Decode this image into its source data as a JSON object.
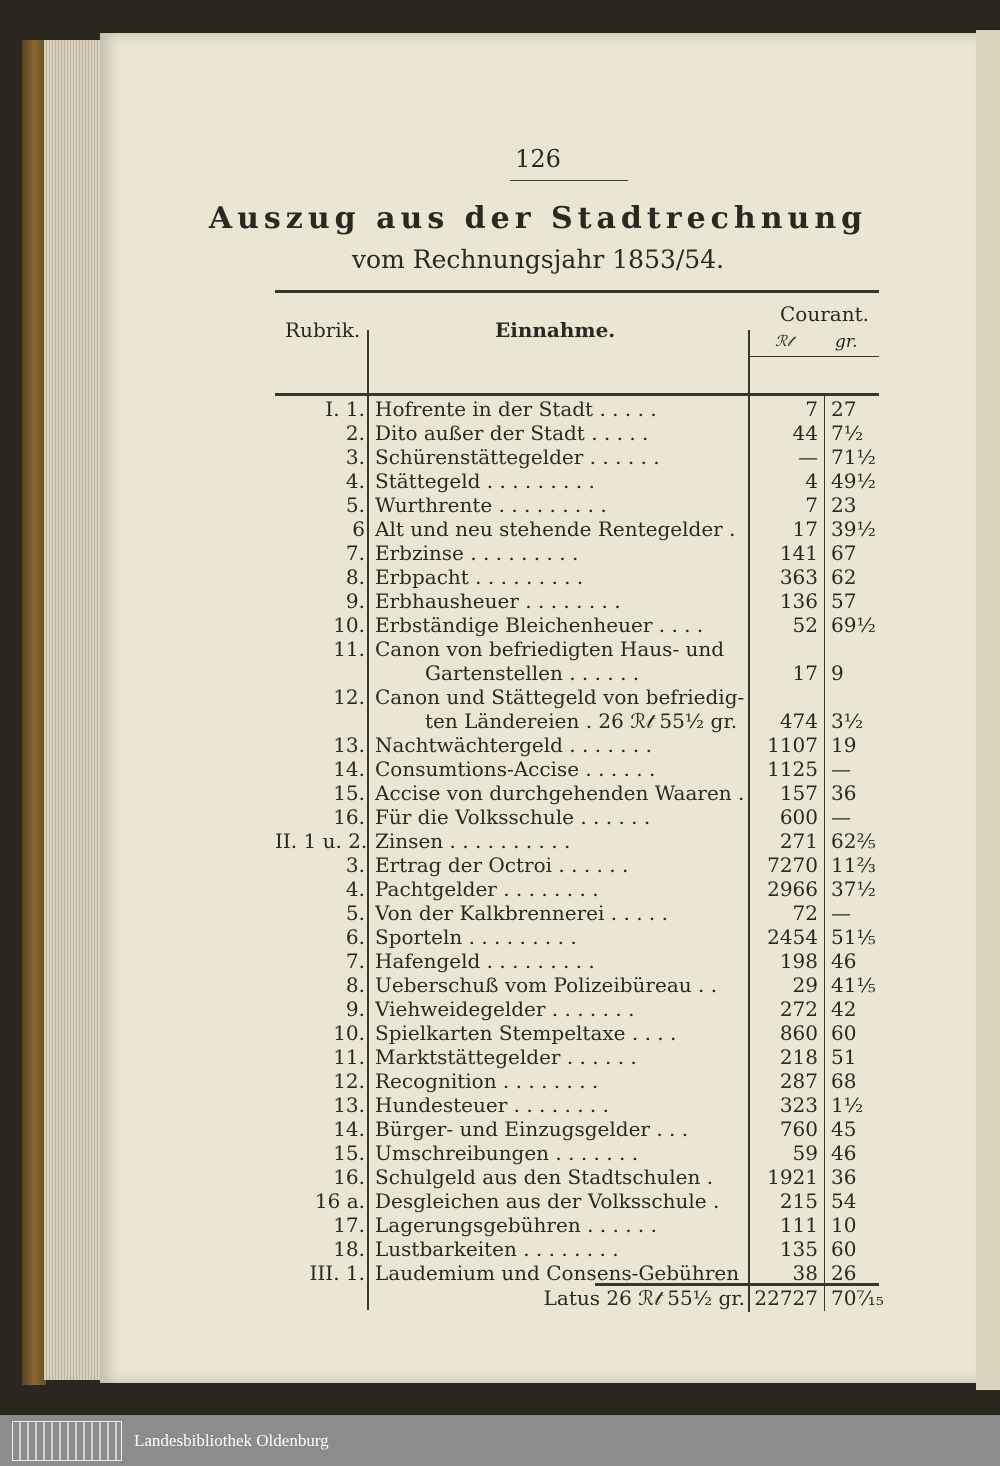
{
  "page_number": "126",
  "title": "Auszug aus der Stadtrechnung",
  "subtitle": "vom Rechnungsjahr 1853/54.",
  "table": {
    "headers": {
      "rubrik": "Rubrik.",
      "einnahme": "Einnahme.",
      "courant": "Courant.",
      "thaler": "ℛ𝓉",
      "groschen": "gr."
    },
    "rows": [
      {
        "rub": "I. 1.",
        "desc": "Hofrente in der Stadt . . . . .",
        "th": "7",
        "gr": "27"
      },
      {
        "rub": "2.",
        "desc": "Dito außer der Stadt . . . . .",
        "th": "44",
        "gr": "7½"
      },
      {
        "rub": "3.",
        "desc": "Schürenstättegelder . . . . . .",
        "th": "—",
        "gr": "71½"
      },
      {
        "rub": "4.",
        "desc": "Stättegeld . . . . . . . . .",
        "th": "4",
        "gr": "49½"
      },
      {
        "rub": "5.",
        "desc": "Wurthrente . . . . . . . . .",
        "th": "7",
        "gr": "23"
      },
      {
        "rub": "6",
        "desc": "Alt und neu stehende Rentegelder .",
        "th": "17",
        "gr": "39½"
      },
      {
        "rub": "7.",
        "desc": "Erbzinse . . . . . . . . .",
        "th": "141",
        "gr": "67"
      },
      {
        "rub": "8.",
        "desc": "Erbpacht . . . . . . . . .",
        "th": "363",
        "gr": "62"
      },
      {
        "rub": "9.",
        "desc": "Erbhausheuer . . . . . . . .",
        "th": "136",
        "gr": "57"
      },
      {
        "rub": "10.",
        "desc": "Erbständige Bleichenheuer . . . .",
        "th": "52",
        "gr": "69½"
      },
      {
        "rub": "11.",
        "desc": "Canon von befriedigten Haus- und",
        "th": "",
        "gr": ""
      },
      {
        "rub": "",
        "desc": "Gartenstellen . . . . . .",
        "th": "17",
        "gr": "9",
        "indent": true
      },
      {
        "rub": "12.",
        "desc": "Canon und Stättegeld von befriedig-",
        "th": "",
        "gr": ""
      },
      {
        "rub": "",
        "desc": "ten Ländereien . 26 ℛ𝓉 55½ gr.",
        "th": "474",
        "gr": "3½",
        "indent": true
      },
      {
        "rub": "13.",
        "desc": "Nachtwächtergeld . . . . . . .",
        "th": "1107",
        "gr": "19"
      },
      {
        "rub": "14.",
        "desc": "Consumtions-Accise . . . . . .",
        "th": "1125",
        "gr": "—"
      },
      {
        "rub": "15.",
        "desc": "Accise von durchgehenden Waaren .",
        "th": "157",
        "gr": "36"
      },
      {
        "rub": "16.",
        "desc": "Für die Volksschule . . . . . .",
        "th": "600",
        "gr": "—"
      },
      {
        "rub": "II. 1 u. 2.",
        "desc": "Zinsen . . . . . . . . . .",
        "th": "271",
        "gr": "62⅖"
      },
      {
        "rub": "3.",
        "desc": "Ertrag der Octroi . . . . . .",
        "th": "7270",
        "gr": "11⅔"
      },
      {
        "rub": "4.",
        "desc": "Pachtgelder . . . . . . . .",
        "th": "2966",
        "gr": "37½"
      },
      {
        "rub": "5.",
        "desc": "Von der Kalkbrennerei . . . . .",
        "th": "72",
        "gr": "—"
      },
      {
        "rub": "6.",
        "desc": "Sporteln . . . . . . . . .",
        "th": "2454",
        "gr": "51⅕"
      },
      {
        "rub": "7.",
        "desc": "Hafengeld . . . . . . . . .",
        "th": "198",
        "gr": "46"
      },
      {
        "rub": "8.",
        "desc": "Ueberschuß vom Polizeibüreau . .",
        "th": "29",
        "gr": "41⅕"
      },
      {
        "rub": "9.",
        "desc": "Viehweidegelder . . . . . . .",
        "th": "272",
        "gr": "42"
      },
      {
        "rub": "10.",
        "desc": "Spielkarten Stempeltaxe . . . .",
        "th": "860",
        "gr": "60"
      },
      {
        "rub": "11.",
        "desc": "Marktstättegelder . . . . . .",
        "th": "218",
        "gr": "51"
      },
      {
        "rub": "12.",
        "desc": "Recognition . . . . . . . .",
        "th": "287",
        "gr": "68"
      },
      {
        "rub": "13.",
        "desc": "Hundesteuer . . . . . . . .",
        "th": "323",
        "gr": "1½"
      },
      {
        "rub": "14.",
        "desc": "Bürger- und Einzugsgelder . . .",
        "th": "760",
        "gr": "45"
      },
      {
        "rub": "15.",
        "desc": "Umschreibungen . . . . . . .",
        "th": "59",
        "gr": "46"
      },
      {
        "rub": "16.",
        "desc": "Schulgeld aus den Stadtschulen .",
        "th": "1921",
        "gr": "36"
      },
      {
        "rub": "16 a.",
        "desc": "Desgleichen aus der Volksschule .",
        "th": "215",
        "gr": "54"
      },
      {
        "rub": "17.",
        "desc": "Lagerungsgebühren . . . . . .",
        "th": "111",
        "gr": "10"
      },
      {
        "rub": "18.",
        "desc": "Lustbarkeiten . . . . . . . .",
        "th": "135",
        "gr": "60"
      },
      {
        "rub": "III. 1.",
        "desc": "Laudemium und Consens-Gebühren",
        "th": "38",
        "gr": "26"
      }
    ],
    "total": {
      "label": "Latus 26 ℛ𝓉 55½ gr.",
      "th": "22727",
      "gr": "70⁷⁄₁₅"
    }
  },
  "footer": {
    "library": "Landesbibliothek Oldenburg"
  }
}
